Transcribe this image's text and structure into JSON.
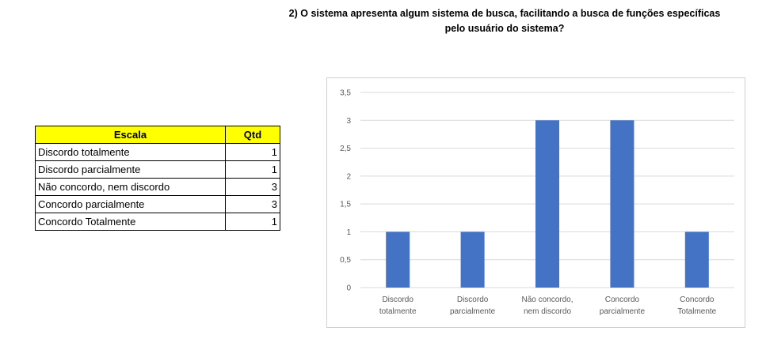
{
  "title": "2) O sistema apresenta algum sistema de busca, facilitando a busca de funções específicas pelo usuário do sistema?",
  "table": {
    "headers": [
      "Escala",
      "Qtd"
    ],
    "rows": [
      {
        "label": "Discordo totalmente",
        "value": "1"
      },
      {
        "label": "Discordo parcialmente",
        "value": "1"
      },
      {
        "label": "Não concordo, nem discordo",
        "value": "3"
      },
      {
        "label": "Concordo parcialmente",
        "value": "3"
      },
      {
        "label": "Concordo Totalmente",
        "value": "1"
      }
    ]
  },
  "chart_data": {
    "type": "bar",
    "categories": [
      [
        "Discordo",
        "totalmente"
      ],
      [
        "Discordo",
        "parcialmente"
      ],
      [
        "Não concordo,",
        "nem discordo"
      ],
      [
        "Concordo",
        "parcialmente"
      ],
      [
        "Concordo",
        "Totalmente"
      ]
    ],
    "values": [
      1,
      1,
      3,
      3,
      1
    ],
    "ylim": [
      0,
      3.5
    ],
    "yticks": [
      "0",
      "0,5",
      "1",
      "1,5",
      "2",
      "2,5",
      "3",
      "3,5"
    ],
    "bar_color": "#4472c4",
    "grid": true,
    "legend": "none"
  }
}
